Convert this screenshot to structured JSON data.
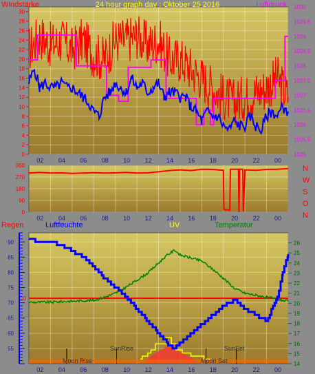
{
  "header": {
    "title": "24 hour graph day : Oktober 25 2016",
    "left_label": "Windstärke",
    "right_label": "Luftdruck"
  },
  "colors": {
    "plot_top": "#d6c862",
    "plot_bottom": "#9c7a2c",
    "wind_gust": "#ff0000",
    "wind_avg": "#0000ff",
    "pressure": "#ff00ff",
    "wind_dir": "#ff0000",
    "humidity": "#0000ff",
    "temperature": "#008000",
    "uv": "#ffff00",
    "rain": "#ff0000",
    "moon": "#000000"
  },
  "wind_dir_labels": [
    "N",
    "W",
    "S",
    "O",
    "N"
  ],
  "bottom_labels": {
    "rain": "Regen",
    "humidity": "Luftfeuchte",
    "uv": "UV",
    "temperature": "Temperatur",
    "moon_rise": "Moon Rise",
    "sun_rise": "SunRise",
    "sun_set": "SunSet",
    "moon_set": "Moon Set"
  },
  "chart_data": [
    {
      "type": "line",
      "name": "wind-pressure",
      "xlim": [
        0,
        24
      ],
      "x_ticks": [
        "02",
        "04",
        "06",
        "08",
        "10",
        "12",
        "14",
        "16",
        "18",
        "20",
        "22",
        "00"
      ],
      "x_tick_values": [
        2,
        4,
        6,
        8,
        10,
        12,
        14,
        16,
        18,
        20,
        22,
        24
      ],
      "ylim": [
        0,
        31
      ],
      "y_ticks": [
        0,
        2,
        4,
        6,
        8,
        10,
        12,
        14,
        16,
        18,
        20,
        22,
        24,
        26,
        28,
        30
      ],
      "y2lim": [
        1025,
        1030
      ],
      "y2_ticks": [
        "1025",
        "1025,5",
        "1026",
        "1026,5",
        "1027",
        "1027,5",
        "1028",
        "1028,5",
        "1029",
        "1029,5",
        "1030"
      ],
      "y2_tick_values": [
        1025,
        1025.5,
        1026,
        1026.5,
        1027,
        1027.5,
        1028,
        1028.5,
        1029,
        1029.5,
        1030
      ],
      "series": [
        {
          "key": "gust",
          "x": [
            0,
            1,
            2,
            3,
            4,
            5,
            6,
            7,
            8,
            9,
            10,
            11,
            12,
            13,
            14,
            15,
            16,
            17,
            18,
            19,
            20,
            21,
            22,
            23,
            24
          ],
          "values": [
            22,
            25,
            23,
            24,
            22,
            24,
            21,
            20,
            24,
            24,
            25,
            23,
            24,
            20,
            20,
            18,
            16,
            14,
            12,
            11,
            12,
            13,
            14,
            16,
            12
          ]
        },
        {
          "key": "average",
          "x": [
            0,
            0.5,
            1,
            1.5,
            2,
            2.5,
            3,
            3.5,
            4,
            4.5,
            5,
            5.5,
            6,
            6.5,
            7,
            7.5,
            8,
            8.5,
            9,
            9.5,
            10,
            10.5,
            11,
            11.5,
            12,
            12.5,
            13,
            13.5,
            14,
            14.5,
            15,
            15.5,
            16,
            16.5,
            17,
            17.5,
            18,
            18.5,
            19,
            19.5,
            20,
            20.5,
            21,
            21.5,
            22,
            22.5,
            23,
            23.5,
            24
          ],
          "values": [
            15,
            18,
            14,
            15,
            14,
            14,
            15,
            14,
            14,
            13,
            12,
            11,
            9,
            8,
            12,
            13,
            15,
            14,
            13,
            16,
            14,
            15,
            13,
            14,
            15,
            12,
            13,
            13,
            12,
            12,
            10,
            9,
            7,
            9,
            8,
            8,
            6,
            5,
            7,
            6,
            6,
            8,
            6,
            5,
            8,
            9,
            8,
            10,
            9
          ]
        },
        {
          "key": "pressure",
          "x": [
            0,
            0.8,
            0.8,
            4.4,
            4.4,
            7.2,
            7.2,
            8.3,
            8.3,
            9.2,
            9.2,
            11.3,
            11.3,
            12.7,
            12.7,
            15.5,
            15.5,
            16.2,
            16.2,
            16.8,
            16.8,
            17.1,
            17.1,
            22.8,
            22.8,
            23.7,
            23.7,
            24
          ],
          "values": [
            1028.2,
            1028.2,
            1029.05,
            1029.05,
            1028,
            1028,
            1027,
            1027,
            1026.8,
            1026.8,
            1027.95,
            1027.95,
            1028.2,
            1028.2,
            1026.9,
            1026.9,
            1026,
            1026,
            1026.5,
            1026.5,
            1026,
            1026,
            1026.9,
            1026.9,
            1027.5,
            1027.5,
            1029,
            1029
          ]
        }
      ]
    },
    {
      "type": "line",
      "name": "wind-direction",
      "xlim": [
        0,
        24
      ],
      "x_ticks": [
        "02",
        "04",
        "06",
        "08",
        "10",
        "12",
        "14",
        "16",
        "18",
        "20",
        "22",
        "00"
      ],
      "x_tick_values": [
        2,
        4,
        6,
        8,
        10,
        12,
        14,
        16,
        18,
        20,
        22,
        24
      ],
      "ylim": [
        0,
        360
      ],
      "y_ticks": [
        0,
        90,
        180,
        270,
        360
      ],
      "series": [
        {
          "key": "direction",
          "x": [
            0,
            1,
            2,
            3,
            4,
            5,
            6,
            7,
            8,
            9,
            10,
            11,
            12,
            13,
            14,
            15,
            16,
            17,
            18,
            18.05,
            18.6,
            18.65,
            19.4,
            19.45,
            19.5,
            19.8,
            19.85,
            20,
            21,
            22,
            23,
            24
          ],
          "values": [
            300,
            305,
            300,
            302,
            298,
            300,
            303,
            300,
            302,
            305,
            300,
            302,
            310,
            320,
            325,
            320,
            330,
            328,
            322,
            20,
            15,
            330,
            330,
            0,
            330,
            330,
            5,
            325,
            322,
            328,
            330,
            335
          ]
        }
      ]
    },
    {
      "type": "line",
      "name": "humidity-temperature",
      "xlim": [
        0,
        24
      ],
      "x_ticks": [
        "02",
        "04",
        "06",
        "08",
        "10",
        "12",
        "14",
        "16",
        "18",
        "20",
        "22",
        "00"
      ],
      "x_tick_values": [
        2,
        4,
        6,
        8,
        10,
        12,
        14,
        16,
        18,
        20,
        22,
        24
      ],
      "ylim": [
        50,
        93
      ],
      "y_ticks": [
        55,
        60,
        65,
        70,
        75,
        80,
        85,
        90
      ],
      "y2lim": [
        14,
        27
      ],
      "y2_ticks": [
        14,
        15,
        16,
        17,
        18,
        19,
        20,
        21,
        22,
        23,
        24,
        25,
        26
      ],
      "rain_level": 71.5,
      "sun_rise": 8.1,
      "sun_set": 19.2,
      "moon_rise": 3.5,
      "moon_set": 16.4,
      "series": [
        {
          "key": "humidity",
          "x": [
            0,
            1,
            2,
            3,
            4,
            5,
            6,
            7,
            8,
            9,
            10,
            11,
            12,
            13,
            13.5,
            14,
            14.5,
            15,
            16,
            17,
            18,
            19,
            20,
            21,
            22,
            23,
            23.5,
            24
          ],
          "values": [
            91,
            90,
            90,
            89,
            87,
            85,
            82,
            78,
            75,
            72,
            68,
            64,
            60,
            56,
            55,
            57,
            58,
            60,
            63,
            66,
            69,
            71,
            68,
            66,
            64,
            72,
            80,
            86
          ]
        },
        {
          "key": "temperature",
          "x": [
            0,
            2,
            4,
            6,
            7,
            8,
            9,
            10,
            11,
            12,
            12.7,
            13.5,
            14,
            15,
            16,
            17,
            18,
            19,
            20,
            21,
            22,
            23,
            24
          ],
          "values": [
            20.1,
            20.1,
            20.2,
            20.3,
            20.6,
            21,
            21.6,
            22.3,
            23,
            24,
            24.7,
            25.3,
            24.8,
            24.5,
            24.2,
            23.4,
            22.5,
            21.5,
            21,
            20.8,
            20.6,
            20.4,
            20.2
          ]
        },
        {
          "key": "uv",
          "x": [
            10.3,
            10.5,
            10.5,
            11,
            11,
            11.3,
            11.3,
            11.7,
            11.7,
            12.7,
            12.7,
            13.2,
            13.2,
            13.6,
            13.6,
            14.2,
            14.2,
            15,
            15,
            15.6,
            15.6,
            16.2,
            16.2,
            16.8
          ],
          "values": [
            51.5,
            51.5,
            52.5,
            52.5,
            53.5,
            53.5,
            54.5,
            54.5,
            56.5,
            56.5,
            58.5,
            58.5,
            56.5,
            56.5,
            54.5,
            54.5,
            53.5,
            53.5,
            52.5,
            52.5,
            52.5,
            52.5,
            51.5,
            51.5
          ]
        },
        {
          "key": "radiation",
          "x": [
            10.8,
            11.5,
            12,
            12.5,
            13,
            13.5,
            14,
            14.5,
            15,
            15.5
          ],
          "values": [
            51,
            53,
            54,
            55,
            56,
            55,
            54,
            53,
            52,
            51
          ]
        }
      ]
    }
  ]
}
